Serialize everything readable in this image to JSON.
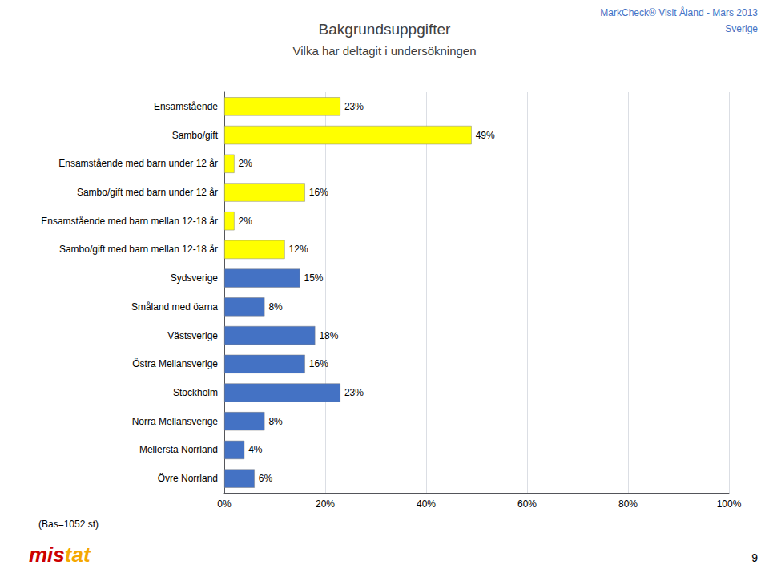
{
  "chart_data": {
    "type": "bar",
    "orientation": "horizontal",
    "title": "Bakgrundsuppgifter",
    "subtitle": "Vilka har deltagit i undersökningen",
    "annotations": [
      "MarkCheck® Visit Åland - Mars 2013",
      "Sverige",
      "(Bas=1052 st)",
      "9",
      "mis",
      "tat"
    ],
    "categories": [
      "Ensamstående",
      "Sambo/gift",
      "Ensamstående med barn under 12 år",
      "Sambo/gift med barn under 12 år",
      "Ensamstående med barn mellan 12-18 år",
      "Sambo/gift med barn mellan 12-18 år",
      "Sydsverige",
      "Småland med öarna",
      "Västsverige",
      "Östra Mellansverige",
      "Stockholm",
      "Norra Mellansverige",
      "Mellersta Norrland",
      "Övre Norrland"
    ],
    "values": [
      23,
      49,
      2,
      16,
      2,
      12,
      15,
      8,
      18,
      16,
      23,
      8,
      4,
      6
    ],
    "value_labels": [
      "23%",
      "49%",
      "2%",
      "16%",
      "2%",
      "12%",
      "15%",
      "8%",
      "18%",
      "16%",
      "23%",
      "8%",
      "4%",
      "6%"
    ],
    "data_labels": true,
    "colors": [
      "#FFFF00",
      "#FFFF00",
      "#FFFF00",
      "#FFFF00",
      "#FFFF00",
      "#FFFF00",
      "#4472C4",
      "#4472C4",
      "#4472C4",
      "#4472C4",
      "#4472C4",
      "#4472C4",
      "#4472C4",
      "#4472C4"
    ],
    "xlim": [
      0,
      100
    ],
    "xticks": [
      {
        "value": 0,
        "label": "0%"
      },
      {
        "value": 20,
        "label": "20%"
      },
      {
        "value": 40,
        "label": "40%"
      },
      {
        "value": 60,
        "label": "60%"
      },
      {
        "value": 80,
        "label": "80%"
      },
      {
        "value": 100,
        "label": "100%"
      }
    ],
    "grid": true
  }
}
